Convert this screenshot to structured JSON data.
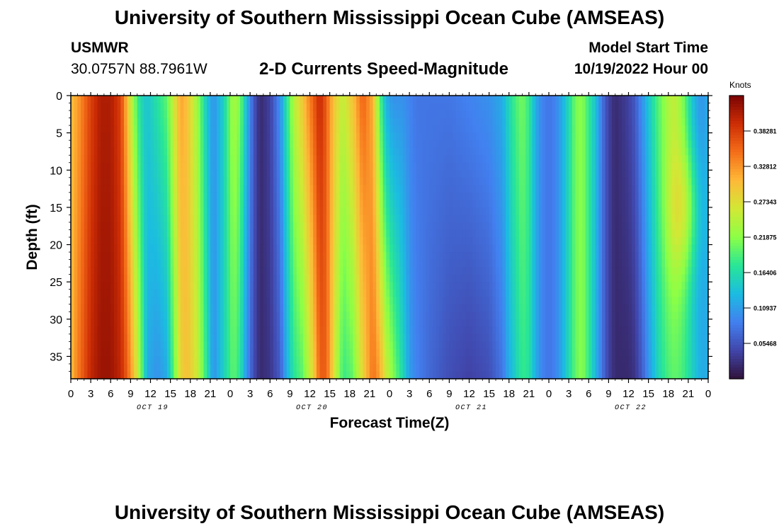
{
  "header": {
    "title": "University of Southern Mississippi Ocean Cube (AMSEAS)",
    "station": "USMWR",
    "coords": "30.0757N  88.7961W",
    "variable": "2-D Currents Speed-Magnitude",
    "model_start_label": "Model Start Time",
    "model_start_value": "10/19/2022 Hour 00",
    "units_label": "Knots"
  },
  "footer": {
    "title": "University of Southern Mississippi Ocean Cube (AMSEAS)"
  },
  "chart_data": {
    "type": "heatmap",
    "title": "2-D Currents Speed-Magnitude",
    "xlabel": "Forecast Time(Z)",
    "ylabel": "Depth (ft)",
    "x_hours_range": [
      0,
      96
    ],
    "y_range": [
      0,
      38
    ],
    "y_ticks": [
      0,
      5,
      10,
      15,
      20,
      25,
      30,
      35
    ],
    "x_tick_labels": [
      "0",
      "3",
      "6",
      "9",
      "12",
      "15",
      "18",
      "21",
      "0",
      "3",
      "6",
      "9",
      "12",
      "15",
      "18",
      "21",
      "0",
      "3",
      "6",
      "9",
      "12",
      "15",
      "18",
      "21",
      "0",
      "3",
      "6",
      "9",
      "12",
      "15",
      "18",
      "21",
      "0"
    ],
    "day_labels": [
      {
        "hour": 12,
        "label": "OCT 19"
      },
      {
        "hour": 36,
        "label": "OCT 20"
      },
      {
        "hour": 60,
        "label": "OCT 21"
      },
      {
        "hour": 84,
        "label": "OCT 22"
      }
    ],
    "colorbar": {
      "label": "Knots",
      "range": [
        0.0,
        0.4375
      ],
      "tick_values": [
        0.05468,
        0.10937,
        0.16406,
        0.21875,
        0.27343,
        0.32812,
        0.38281
      ],
      "tick_labels": [
        "0.05468",
        "0.10937",
        "0.16406",
        "0.21875",
        "0.27343",
        "0.32812",
        "0.38281"
      ]
    },
    "speed_by_hour": {
      "hours": [
        0,
        1,
        3,
        4.5,
        6,
        7.5,
        8.5,
        9.5,
        10.5,
        11.5,
        13,
        14.5,
        15.5,
        16.5,
        17.5,
        19,
        20.5,
        21.5,
        23,
        24.5,
        25.5,
        26.5,
        27.5,
        28.5,
        30,
        31.5,
        32.5,
        33.5,
        35,
        36.5,
        37.5,
        38.5,
        39.5,
        41,
        42.5,
        44,
        45.5,
        46.5,
        47.5,
        48.5,
        50,
        51,
        52,
        54,
        57,
        60,
        63,
        65,
        66,
        67,
        68,
        69,
        70,
        71,
        72,
        73,
        74,
        75,
        76,
        77,
        78,
        79,
        80,
        81,
        82,
        83,
        84,
        85,
        86,
        87,
        88,
        89,
        90,
        91,
        92,
        93,
        94,
        95,
        96
      ],
      "surface": [
        0.3,
        0.32,
        0.38,
        0.41,
        0.41,
        0.38,
        0.3,
        0.22,
        0.16,
        0.14,
        0.17,
        0.2,
        0.26,
        0.32,
        0.3,
        0.23,
        0.14,
        0.1,
        0.15,
        0.24,
        0.21,
        0.13,
        0.06,
        0.02,
        0.04,
        0.1,
        0.17,
        0.24,
        0.3,
        0.36,
        0.4,
        0.36,
        0.3,
        0.25,
        0.3,
        0.36,
        0.31,
        0.2,
        0.12,
        0.1,
        0.1,
        0.09,
        0.08,
        0.08,
        0.08,
        0.09,
        0.1,
        0.12,
        0.16,
        0.19,
        0.21,
        0.18,
        0.12,
        0.09,
        0.08,
        0.09,
        0.12,
        0.16,
        0.21,
        0.22,
        0.18,
        0.14,
        0.08,
        0.04,
        0.02,
        0.03,
        0.04,
        0.06,
        0.1,
        0.14,
        0.18,
        0.21,
        0.24,
        0.25,
        0.22,
        0.17,
        0.12,
        0.1,
        0.12
      ],
      "bottom": [
        0.3,
        0.34,
        0.4,
        0.42,
        0.42,
        0.4,
        0.36,
        0.3,
        0.22,
        0.12,
        0.1,
        0.12,
        0.2,
        0.28,
        0.3,
        0.26,
        0.17,
        0.1,
        0.15,
        0.2,
        0.17,
        0.1,
        0.05,
        0.02,
        0.03,
        0.06,
        0.12,
        0.17,
        0.2,
        0.28,
        0.36,
        0.36,
        0.28,
        0.18,
        0.2,
        0.28,
        0.35,
        0.32,
        0.26,
        0.22,
        0.16,
        0.11,
        0.09,
        0.07,
        0.05,
        0.04,
        0.05,
        0.08,
        0.12,
        0.15,
        0.18,
        0.17,
        0.12,
        0.09,
        0.08,
        0.09,
        0.12,
        0.16,
        0.2,
        0.22,
        0.18,
        0.13,
        0.08,
        0.04,
        0.02,
        0.02,
        0.02,
        0.03,
        0.06,
        0.1,
        0.14,
        0.17,
        0.19,
        0.2,
        0.19,
        0.17,
        0.14,
        0.12,
        0.12
      ]
    },
    "mid_depth_maximum": {
      "hour": 92.5,
      "value": 0.25
    }
  }
}
